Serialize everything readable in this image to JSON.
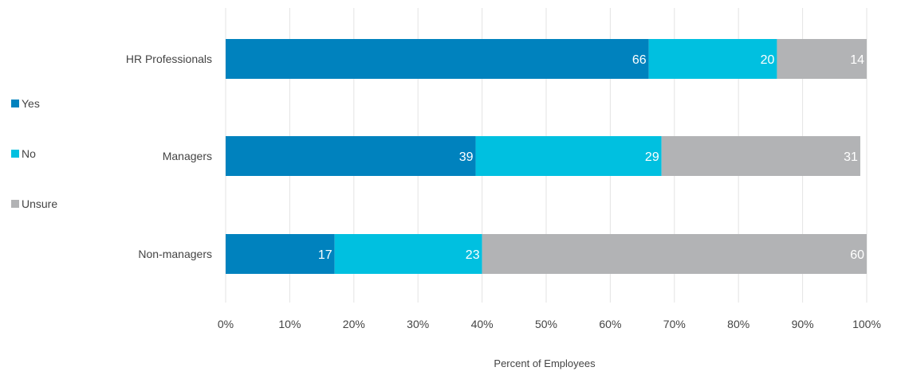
{
  "chart_data": {
    "type": "bar",
    "orientation": "horizontal",
    "stacked": true,
    "categories": [
      "HR Professionals",
      "Managers",
      "Non-managers"
    ],
    "series": [
      {
        "name": "Yes",
        "values": [
          66,
          39,
          17
        ],
        "color": "#0082be"
      },
      {
        "name": "No",
        "values": [
          20,
          29,
          23
        ],
        "color": "#00c0e0"
      },
      {
        "name": "Unsure",
        "values": [
          14,
          31,
          60
        ],
        "color": "#b2b3b5"
      }
    ],
    "xlabel": "Percent of Employees",
    "ylabel": "",
    "xlim": [
      0,
      100
    ],
    "x_ticks": [
      "0%",
      "10%",
      "20%",
      "30%",
      "40%",
      "50%",
      "60%",
      "70%",
      "80%",
      "90%",
      "100%"
    ],
    "grid": "vertical",
    "legend_position": "left"
  }
}
